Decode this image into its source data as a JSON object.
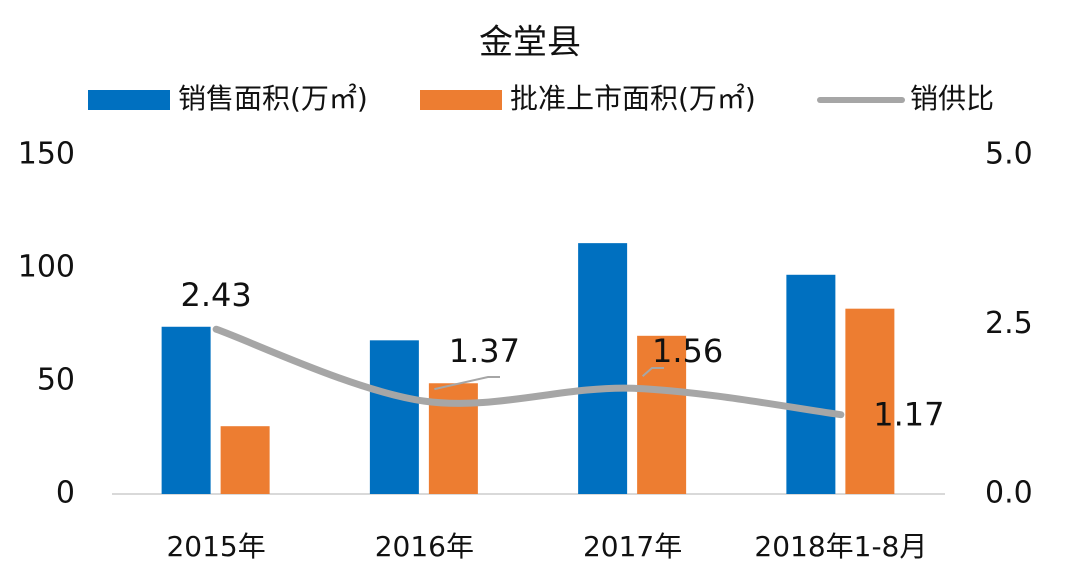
{
  "chart_data": {
    "type": "bar-line",
    "title": "金堂县",
    "categories": [
      "2015年",
      "2016年",
      "2017年",
      "2018年1-8月"
    ],
    "series": [
      {
        "name": "销售面积(万㎡)",
        "type": "bar",
        "color": "#0070c0",
        "values": [
          74,
          68,
          111,
          97
        ]
      },
      {
        "name": "批准上市面积(万㎡)",
        "type": "bar",
        "color": "#ed7d31",
        "values": [
          30,
          49,
          70,
          82
        ]
      },
      {
        "name": "销供比",
        "type": "line",
        "axis": "y2",
        "color": "#a6a6a6",
        "values": [
          2.43,
          1.37,
          1.56,
          1.17
        ]
      }
    ],
    "ylim": [
      0,
      150
    ],
    "yticks": [
      0,
      50,
      100,
      150
    ],
    "y2lim": [
      0,
      5
    ],
    "y2ticks": [
      {
        "value": 0,
        "label": "0.0"
      },
      {
        "value": 2.5,
        "label": "2.5"
      },
      {
        "value": 5,
        "label": "5.0"
      }
    ],
    "legend": "top"
  }
}
